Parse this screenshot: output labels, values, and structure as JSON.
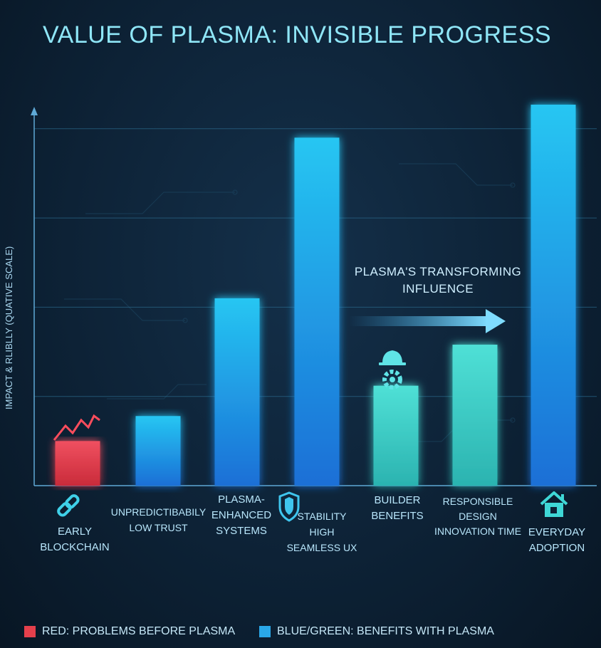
{
  "chart_data": {
    "type": "bar",
    "title": "VALUE OF PLASMA: INVISIBLE PROGRESS",
    "ylabel": "IMPACT & RLIBLLY (QUATIVE SCALE)",
    "xlabel": "",
    "ylim": [
      0,
      4.15
    ],
    "grid": true,
    "legend_position": "bottom",
    "categories": [
      "EARLY\nBLOCKCHAIN",
      "UNPREDICTIBABILY\nLOW TRUST",
      "PLASMA-\nENHANCED\nSYSTEMS",
      "STABILITY\nHIGH\nSEAMLESS UX",
      "BUILDER\nBENEFITS",
      "RESPONSIBLE\nDESIGN\nINNOVATION TIME",
      "EVERYDAY\nADOPTION"
    ],
    "values": [
      0.5,
      0.78,
      2.1,
      3.9,
      1.12,
      1.58,
      4.27
    ],
    "bar_groups": [
      "problem",
      "benefit",
      "benefit",
      "benefit",
      "benefit-green",
      "benefit-green",
      "benefit"
    ],
    "annotation": "PLASMA'S TRANSFORMING\nINFLUENCE",
    "legend": [
      {
        "label": "RED: PROBLEMS BEFORE PLASMA",
        "color": "#e5404c"
      },
      {
        "label": "BLUE/GREEN: BENEFITS WITH PLASMA",
        "color": "#2aa8e8"
      }
    ],
    "colors": {
      "problem": "#e5404c",
      "benefit_top": "#26c6f2",
      "benefit_bottom": "#1b6fd6",
      "green_top": "#4fe0d6",
      "green_bottom": "#2fbfb8"
    },
    "icons": [
      "chain-link-icon",
      "shield-icon",
      "helmet-gear-icon",
      "house-icon"
    ]
  }
}
